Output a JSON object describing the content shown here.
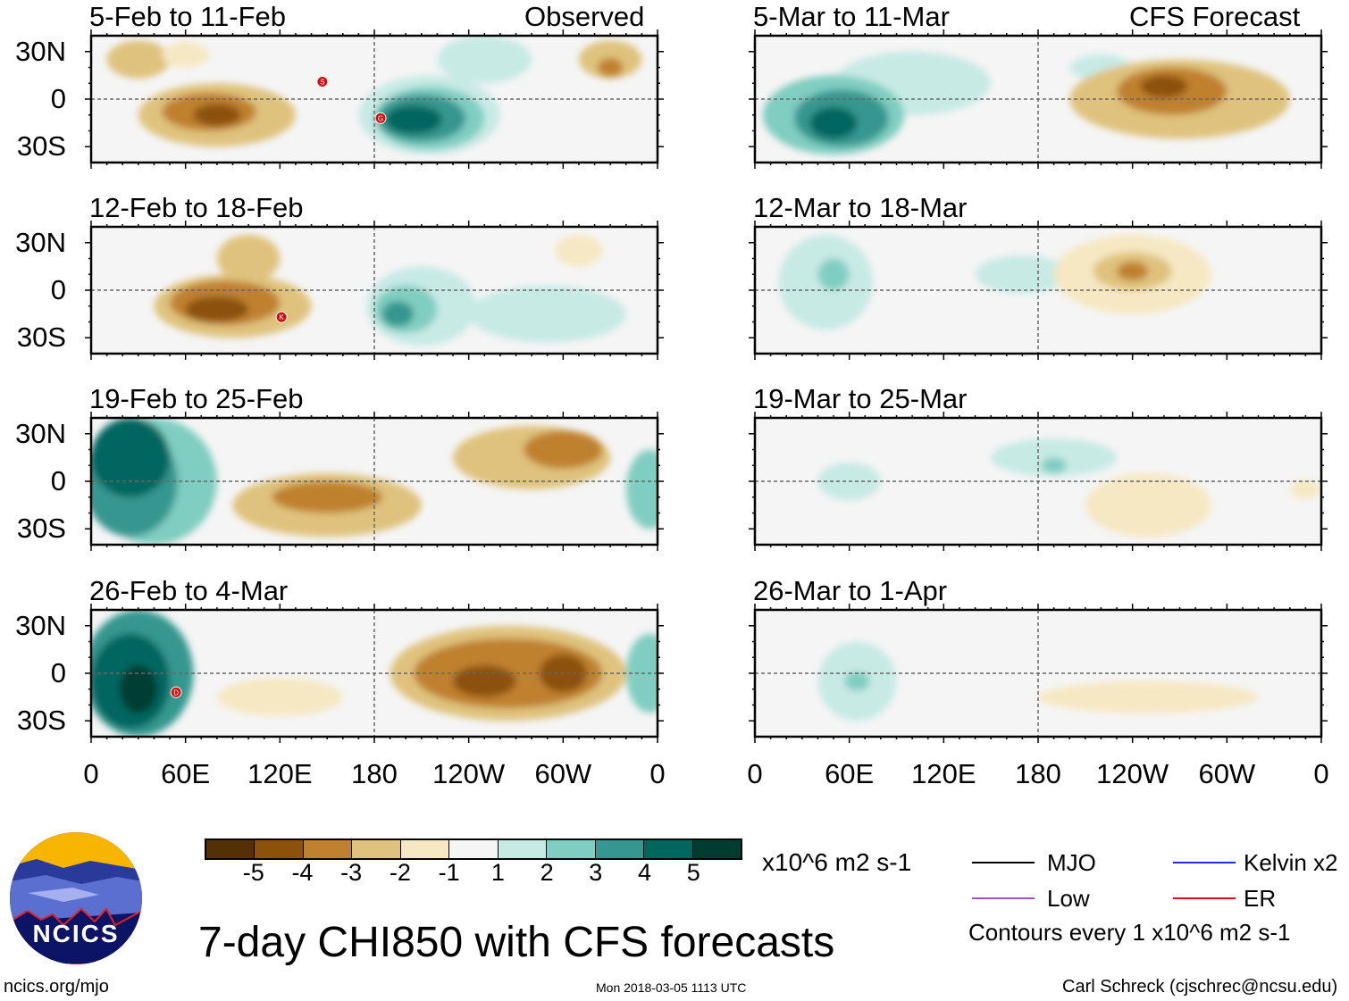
{
  "lat_labels": [
    "30N",
    "0",
    "30S"
  ],
  "lon_labels": [
    "0",
    "60E",
    "120E",
    "180",
    "120W",
    "60W",
    "0"
  ],
  "colors": {
    "-5": "#543005",
    "-4": "#8c510a",
    "-3": "#bf812d",
    "-2": "#dfc27d",
    "-1": "#f6e8c3",
    "0": "#f5f5f5",
    "1": "#c7eae5",
    "2": "#80cdc1",
    "3": "#35978f",
    "4": "#01665e",
    "5": "#003c30"
  },
  "left_header": "Observed",
  "right_header": "CFS Forecast",
  "panels_left": [
    {
      "title": "5-Feb to 11-Feb",
      "blobs": [
        [
          80,
          -10,
          50,
          20,
          -2
        ],
        [
          75,
          -8,
          30,
          12,
          -3
        ],
        [
          80,
          -10,
          15,
          7,
          -4
        ],
        [
          30,
          25,
          20,
          12,
          -2
        ],
        [
          60,
          28,
          15,
          8,
          -1
        ],
        [
          215,
          -10,
          45,
          25,
          1
        ],
        [
          215,
          -12,
          35,
          20,
          2
        ],
        [
          210,
          -12,
          28,
          15,
          3
        ],
        [
          205,
          -13,
          18,
          9,
          4
        ],
        [
          250,
          25,
          30,
          15,
          1
        ],
        [
          330,
          25,
          20,
          12,
          -2
        ],
        [
          330,
          20,
          8,
          6,
          -3
        ]
      ],
      "storms": [
        {
          "label": "S",
          "lon": 147,
          "lat": 11
        },
        {
          "label": "G",
          "lon": 184,
          "lat": -12
        }
      ]
    },
    {
      "title": "12-Feb to 18-Feb",
      "blobs": [
        [
          90,
          -10,
          50,
          20,
          -2
        ],
        [
          85,
          -8,
          35,
          14,
          -3
        ],
        [
          80,
          -12,
          20,
          8,
          -4
        ],
        [
          100,
          20,
          20,
          15,
          -2
        ],
        [
          210,
          -10,
          35,
          25,
          1
        ],
        [
          200,
          -12,
          20,
          15,
          2
        ],
        [
          195,
          -15,
          10,
          8,
          3
        ],
        [
          290,
          -15,
          50,
          18,
          1
        ],
        [
          310,
          25,
          15,
          10,
          -1
        ]
      ],
      "storms": [
        {
          "label": "K",
          "lon": 121,
          "lat": -17
        }
      ]
    },
    {
      "title": "19-Feb to 25-Feb",
      "blobs": [
        [
          40,
          0,
          40,
          40,
          2
        ],
        [
          25,
          0,
          30,
          35,
          3
        ],
        [
          25,
          15,
          25,
          25,
          4
        ],
        [
          150,
          -15,
          60,
          20,
          -2
        ],
        [
          150,
          -10,
          35,
          10,
          -3
        ],
        [
          280,
          15,
          50,
          20,
          -2
        ],
        [
          300,
          20,
          25,
          12,
          -3
        ],
        [
          355,
          -5,
          15,
          25,
          2
        ]
      ],
      "storms": []
    },
    {
      "title": "26-Feb to 4-Mar",
      "blobs": [
        [
          120,
          -15,
          40,
          12,
          -1
        ],
        [
          30,
          0,
          35,
          40,
          3
        ],
        [
          25,
          -5,
          25,
          30,
          4
        ],
        [
          30,
          -10,
          12,
          15,
          5
        ],
        [
          265,
          0,
          75,
          30,
          -2
        ],
        [
          265,
          0,
          60,
          22,
          -3
        ],
        [
          250,
          -5,
          20,
          10,
          -4
        ],
        [
          300,
          0,
          15,
          12,
          -4
        ],
        [
          355,
          0,
          15,
          25,
          2
        ]
      ],
      "storms": [
        {
          "label": "D",
          "lon": 54,
          "lat": -12
        }
      ]
    }
  ],
  "panels_right": [
    {
      "title": "5-Mar to 11-Mar",
      "blobs": [
        [
          100,
          10,
          50,
          20,
          1
        ],
        [
          50,
          -10,
          45,
          25,
          2
        ],
        [
          55,
          -12,
          30,
          18,
          3
        ],
        [
          50,
          -15,
          15,
          10,
          4
        ],
        [
          220,
          20,
          20,
          8,
          1
        ],
        [
          270,
          0,
          70,
          25,
          -2
        ],
        [
          265,
          5,
          35,
          15,
          -3
        ],
        [
          260,
          8,
          15,
          7,
          -4
        ]
      ],
      "storms": []
    },
    {
      "title": "12-Mar to 18-Mar",
      "blobs": [
        [
          45,
          5,
          30,
          30,
          1
        ],
        [
          50,
          10,
          10,
          10,
          2
        ],
        [
          170,
          10,
          30,
          12,
          1
        ],
        [
          240,
          10,
          50,
          25,
          -1
        ],
        [
          240,
          12,
          25,
          12,
          -2
        ],
        [
          240,
          12,
          10,
          6,
          -3
        ]
      ],
      "storms": []
    },
    {
      "title": "19-Mar to 25-Mar",
      "blobs": [
        [
          190,
          15,
          40,
          12,
          1
        ],
        [
          190,
          10,
          8,
          5,
          2
        ],
        [
          250,
          -15,
          40,
          20,
          -1
        ],
        [
          60,
          0,
          20,
          12,
          1
        ],
        [
          350,
          -5,
          10,
          6,
          -1
        ]
      ],
      "storms": []
    },
    {
      "title": "26-Mar to 1-Apr",
      "blobs": [
        [
          65,
          -5,
          25,
          25,
          1
        ],
        [
          65,
          -5,
          8,
          6,
          2
        ],
        [
          250,
          -15,
          70,
          10,
          -1
        ]
      ],
      "storms": []
    }
  ],
  "colorbar": {
    "labels": [
      "-5",
      "-4",
      "-3",
      "-2",
      "-1",
      "1",
      "2",
      "3",
      "4",
      "5"
    ],
    "units": "x10^6 m2 s-1"
  },
  "legend": {
    "mjo": "MJO",
    "kelvin": "Kelvin x2",
    "low": "Low",
    "er": "ER",
    "mjo_color": "#000000",
    "kelvin_color": "#1f2fe0",
    "low_color": "#9b4fd6",
    "er_color": "#e01010",
    "contours": "Contours every 1 x10^6 m2 s-1"
  },
  "title": "7-day CHI850 with CFS forecasts",
  "logo_text": "NCICS",
  "url": "ncics.org/mjo",
  "timestamp": "Mon 2018-03-05 1113 UTC",
  "author": "Carl Schreck (cjschrec@ncsu.edu)"
}
